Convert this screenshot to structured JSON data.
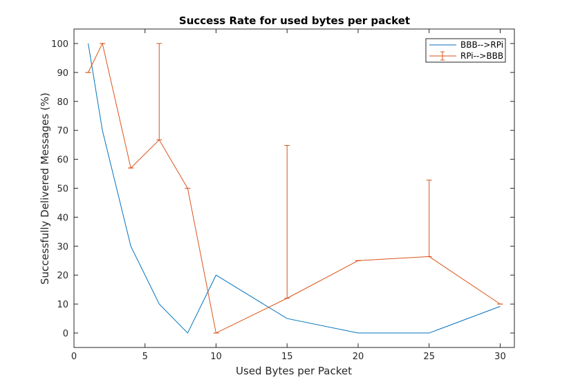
{
  "chart_data": {
    "type": "line",
    "title": "Success Rate for used bytes per packet",
    "xlabel": "Used Bytes per Packet",
    "ylabel": "Successfully Delivered Messages (%)",
    "xlim": [
      0,
      31
    ],
    "ylim": [
      -5,
      105
    ],
    "xticks": [
      0,
      5,
      10,
      15,
      20,
      25,
      30
    ],
    "yticks": [
      0,
      10,
      20,
      30,
      40,
      50,
      60,
      70,
      80,
      90,
      100
    ],
    "grid": false,
    "legend_position": "top-right",
    "series": [
      {
        "name": "BBB-->RPi",
        "color": "#0072BD",
        "x": [
          1,
          2,
          4,
          6,
          8,
          10,
          15,
          20,
          25,
          30
        ],
        "y": [
          100,
          70,
          30,
          10,
          0,
          20,
          5,
          0,
          0,
          9.2
        ],
        "error_bars": false
      },
      {
        "name": "RPi-->BBB",
        "color": "#D95319",
        "x": [
          1,
          2,
          4,
          6,
          8,
          10,
          15,
          20,
          25,
          30
        ],
        "y": [
          90,
          100,
          57,
          66.7,
          50,
          0,
          12,
          25,
          26.4,
          10
        ],
        "error_upper": [
          0,
          0,
          0,
          33.3,
          0,
          0,
          52.8,
          0,
          26.4,
          0
        ],
        "error_lower": [
          0,
          0,
          0,
          0,
          0,
          0,
          0,
          0,
          0,
          0
        ],
        "error_bars": true
      }
    ]
  }
}
